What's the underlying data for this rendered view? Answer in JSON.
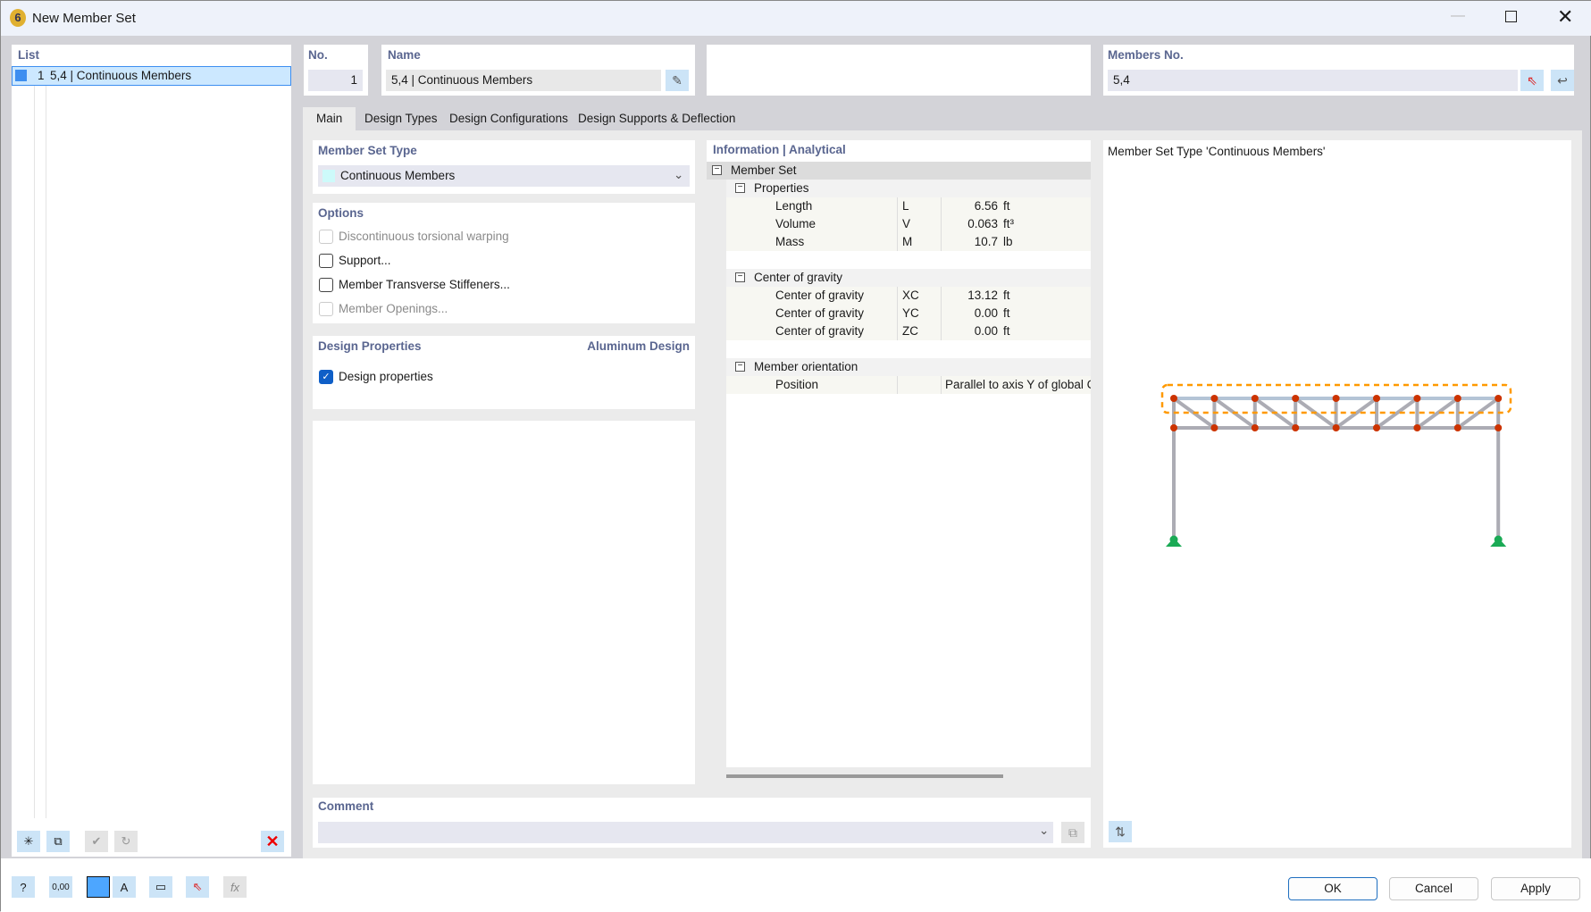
{
  "window": {
    "title": "New Member Set"
  },
  "list": {
    "header": "List",
    "items": [
      {
        "no": "1",
        "label": "5,4 | Continuous Members",
        "color": "#3d8ef0"
      }
    ]
  },
  "no": {
    "header": "No.",
    "value": "1"
  },
  "name": {
    "header": "Name",
    "value": "5,4 | Continuous Members"
  },
  "members": {
    "header": "Members No.",
    "value": "5,4"
  },
  "tabs": [
    "Main",
    "Design Types",
    "Design Configurations",
    "Design Supports & Deflection"
  ],
  "member_set_type": {
    "header": "Member Set Type",
    "value": "Continuous Members",
    "swatch": "#cdfafa"
  },
  "options": {
    "header": "Options",
    "items": [
      {
        "label": "Discontinuous torsional warping",
        "checked": false,
        "disabled": true
      },
      {
        "label": "Support...",
        "checked": false,
        "disabled": false
      },
      {
        "label": "Member Transverse Stiffeners...",
        "checked": false,
        "disabled": false
      },
      {
        "label": "Member Openings...",
        "checked": false,
        "disabled": true
      }
    ]
  },
  "design_properties": {
    "header": "Design Properties",
    "module": "Aluminum Design",
    "item": {
      "label": "Design properties",
      "checked": true
    }
  },
  "info": {
    "header": "Information | Analytical",
    "root": "Member Set",
    "groups": [
      {
        "title": "Properties",
        "rows": [
          {
            "name": "Length",
            "sym": "L",
            "value": "6.56",
            "unit": "ft"
          },
          {
            "name": "Volume",
            "sym": "V",
            "value": "0.063",
            "unit": "ft³"
          },
          {
            "name": "Mass",
            "sym": "M",
            "value": "10.7",
            "unit": "lb"
          }
        ]
      },
      {
        "title": "Center of gravity",
        "rows": [
          {
            "name": "Center of gravity",
            "sym": "XC",
            "value": "13.12",
            "unit": "ft"
          },
          {
            "name": "Center of gravity",
            "sym": "YC",
            "value": "0.00",
            "unit": "ft"
          },
          {
            "name": "Center of gravity",
            "sym": "ZC",
            "value": "0.00",
            "unit": "ft"
          }
        ]
      },
      {
        "title": "Member orientation",
        "rows": [
          {
            "name": "Position",
            "sym": "",
            "value": "Parallel to axis Y of global C",
            "unit": ""
          }
        ]
      }
    ]
  },
  "comment": {
    "header": "Comment",
    "value": ""
  },
  "preview": {
    "title": "Member Set Type 'Continuous Members'"
  },
  "buttons": {
    "ok": "OK",
    "cancel": "Cancel",
    "apply": "Apply"
  },
  "colors": {
    "accent": "#5a6690",
    "node": "#cc3300",
    "support": "#1aaa55",
    "highlight": "#ff9900"
  }
}
